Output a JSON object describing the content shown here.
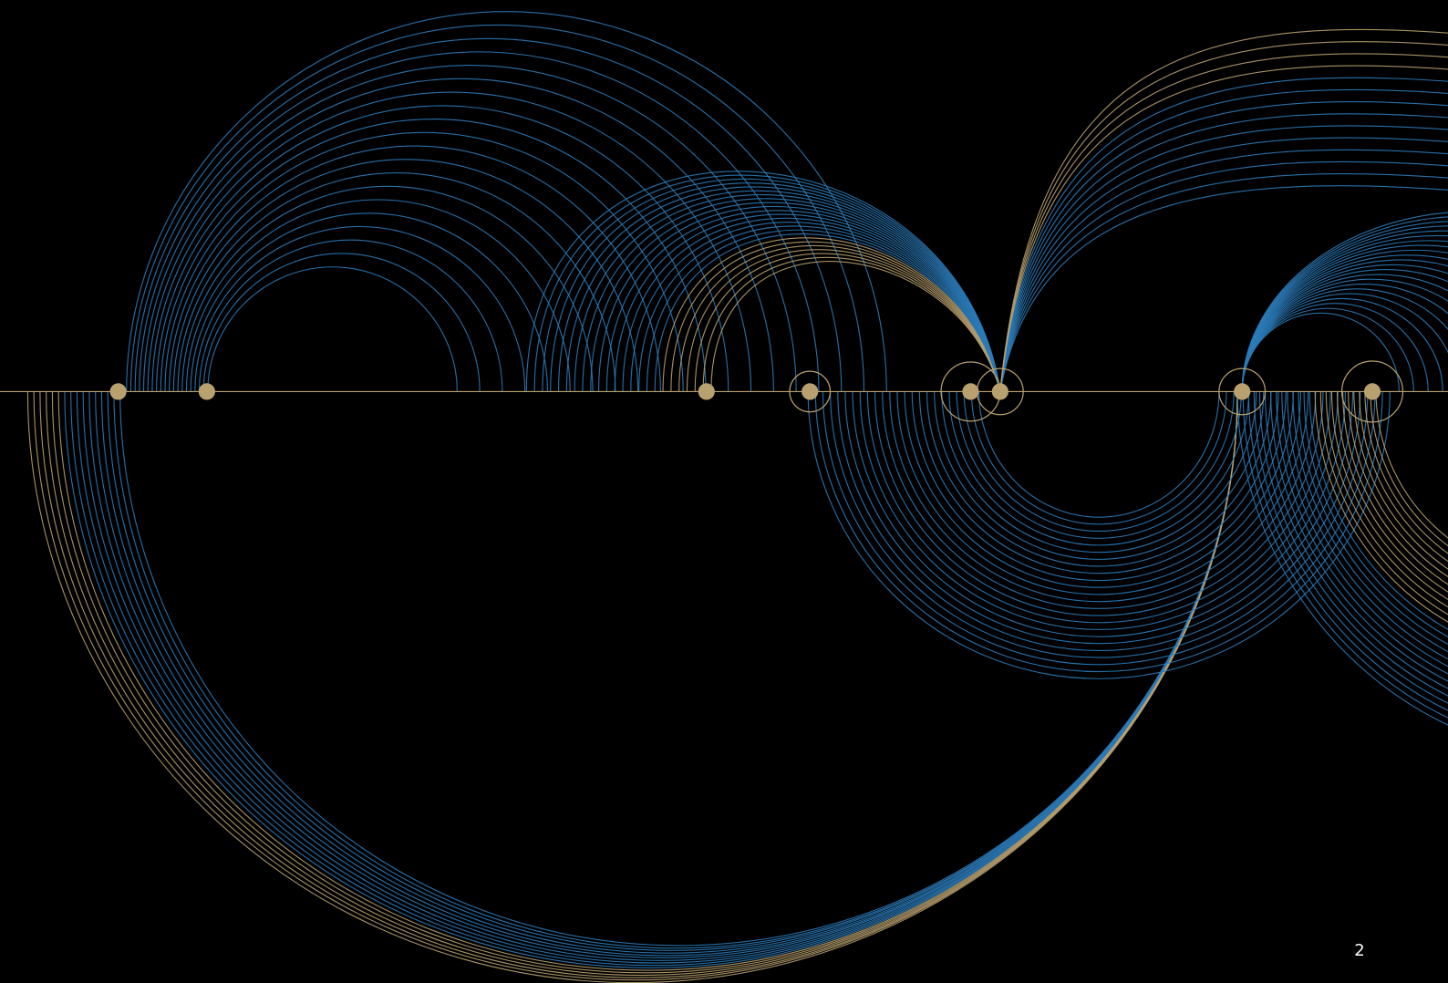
{
  "slide": {
    "page_number": 2
  }
}
